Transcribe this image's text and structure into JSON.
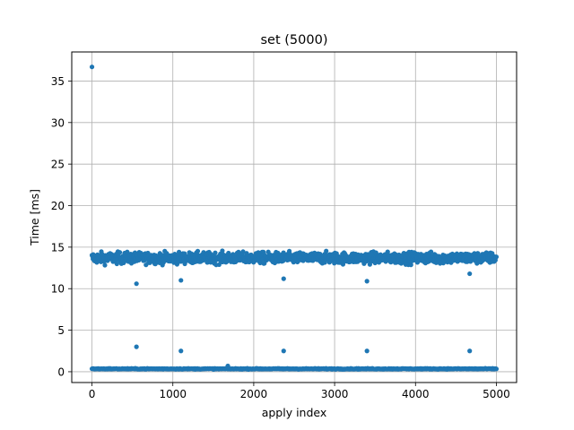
{
  "chart_data": {
    "type": "scatter",
    "title": "set (5000)",
    "xlabel": "apply index",
    "ylabel": "Time [ms]",
    "xlim": [
      -250,
      5250
    ],
    "ylim": [
      -1.3,
      38.5
    ],
    "xticks": [
      0,
      1000,
      2000,
      3000,
      4000,
      5000
    ],
    "yticks": [
      0,
      5,
      10,
      15,
      20,
      25,
      30,
      35
    ],
    "grid": true,
    "legend": "none",
    "marker_color": "#1f77b4",
    "bands": [
      {
        "name": "upper cluster",
        "x_range": [
          0,
          5000
        ],
        "y_center": 13.7,
        "y_spread": 0.6
      },
      {
        "name": "lower cluster",
        "x_range": [
          0,
          5000
        ],
        "y_center": 0.35,
        "y_spread": 0.05
      }
    ],
    "outliers": [
      {
        "x": 0,
        "y": 36.7
      },
      {
        "x": 550,
        "y": 10.6
      },
      {
        "x": 550,
        "y": 3.0
      },
      {
        "x": 1100,
        "y": 11.0
      },
      {
        "x": 1100,
        "y": 2.5
      },
      {
        "x": 1680,
        "y": 0.7
      },
      {
        "x": 2370,
        "y": 11.2
      },
      {
        "x": 2370,
        "y": 2.5
      },
      {
        "x": 3400,
        "y": 10.9
      },
      {
        "x": 3400,
        "y": 2.5
      },
      {
        "x": 4670,
        "y": 11.8
      },
      {
        "x": 4670,
        "y": 2.5
      }
    ]
  }
}
